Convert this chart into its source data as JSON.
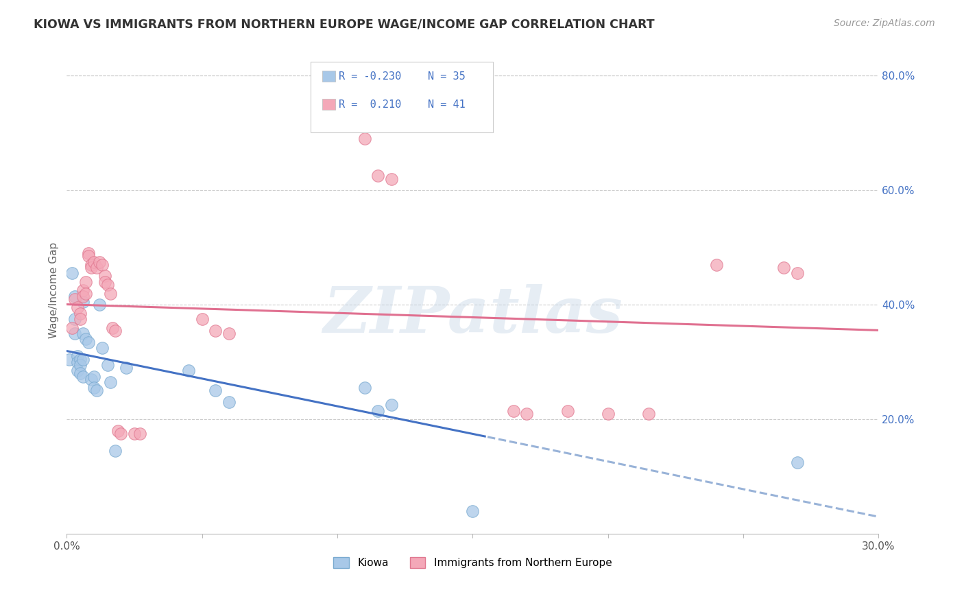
{
  "title": "KIOWA VS IMMIGRANTS FROM NORTHERN EUROPE WAGE/INCOME GAP CORRELATION CHART",
  "source": "Source: ZipAtlas.com",
  "ylabel": "Wage/Income Gap",
  "x_min": 0.0,
  "x_max": 0.3,
  "y_min": 0.0,
  "y_max": 0.85,
  "x_ticks": [
    0.0,
    0.05,
    0.1,
    0.15,
    0.2,
    0.25,
    0.3
  ],
  "x_tick_labels": [
    "0.0%",
    "",
    "",
    "",
    "",
    "",
    "30.0%"
  ],
  "y_ticks_right": [
    0.2,
    0.4,
    0.6,
    0.8
  ],
  "kiowa_color": "#a8c8e8",
  "kiowa_edge": "#7aaad0",
  "imm_color": "#f4a8b8",
  "imm_edge": "#e07890",
  "kiowa_points": [
    [
      0.001,
      0.305
    ],
    [
      0.002,
      0.455
    ],
    [
      0.003,
      0.415
    ],
    [
      0.003,
      0.375
    ],
    [
      0.003,
      0.35
    ],
    [
      0.004,
      0.31
    ],
    [
      0.004,
      0.3
    ],
    [
      0.004,
      0.285
    ],
    [
      0.005,
      0.305
    ],
    [
      0.005,
      0.295
    ],
    [
      0.005,
      0.28
    ],
    [
      0.006,
      0.405
    ],
    [
      0.006,
      0.35
    ],
    [
      0.006,
      0.305
    ],
    [
      0.006,
      0.275
    ],
    [
      0.007,
      0.34
    ],
    [
      0.008,
      0.335
    ],
    [
      0.009,
      0.27
    ],
    [
      0.01,
      0.275
    ],
    [
      0.01,
      0.255
    ],
    [
      0.011,
      0.25
    ],
    [
      0.012,
      0.4
    ],
    [
      0.013,
      0.325
    ],
    [
      0.015,
      0.295
    ],
    [
      0.016,
      0.265
    ],
    [
      0.018,
      0.145
    ],
    [
      0.022,
      0.29
    ],
    [
      0.045,
      0.285
    ],
    [
      0.055,
      0.25
    ],
    [
      0.06,
      0.23
    ],
    [
      0.11,
      0.255
    ],
    [
      0.115,
      0.215
    ],
    [
      0.12,
      0.225
    ],
    [
      0.15,
      0.04
    ],
    [
      0.27,
      0.125
    ]
  ],
  "imm_points": [
    [
      0.002,
      0.36
    ],
    [
      0.003,
      0.41
    ],
    [
      0.004,
      0.395
    ],
    [
      0.005,
      0.385
    ],
    [
      0.005,
      0.375
    ],
    [
      0.006,
      0.425
    ],
    [
      0.006,
      0.415
    ],
    [
      0.007,
      0.44
    ],
    [
      0.007,
      0.42
    ],
    [
      0.008,
      0.49
    ],
    [
      0.008,
      0.485
    ],
    [
      0.009,
      0.47
    ],
    [
      0.009,
      0.465
    ],
    [
      0.01,
      0.475
    ],
    [
      0.011,
      0.465
    ],
    [
      0.012,
      0.475
    ],
    [
      0.013,
      0.47
    ],
    [
      0.014,
      0.45
    ],
    [
      0.014,
      0.44
    ],
    [
      0.015,
      0.435
    ],
    [
      0.016,
      0.42
    ],
    [
      0.017,
      0.36
    ],
    [
      0.018,
      0.355
    ],
    [
      0.019,
      0.18
    ],
    [
      0.02,
      0.175
    ],
    [
      0.025,
      0.175
    ],
    [
      0.027,
      0.175
    ],
    [
      0.05,
      0.375
    ],
    [
      0.055,
      0.355
    ],
    [
      0.06,
      0.35
    ],
    [
      0.11,
      0.69
    ],
    [
      0.115,
      0.625
    ],
    [
      0.12,
      0.62
    ],
    [
      0.165,
      0.215
    ],
    [
      0.17,
      0.21
    ],
    [
      0.185,
      0.215
    ],
    [
      0.2,
      0.21
    ],
    [
      0.215,
      0.21
    ],
    [
      0.24,
      0.47
    ],
    [
      0.265,
      0.465
    ],
    [
      0.27,
      0.455
    ]
  ],
  "kiowa_line_color": "#4472c4",
  "kiowa_line_dashed_color": "#99b3d8",
  "imm_line_color": "#e07090",
  "watermark_text": "ZIPatlas",
  "watermark_color": "#c8d8e8",
  "watermark_alpha": 0.45
}
